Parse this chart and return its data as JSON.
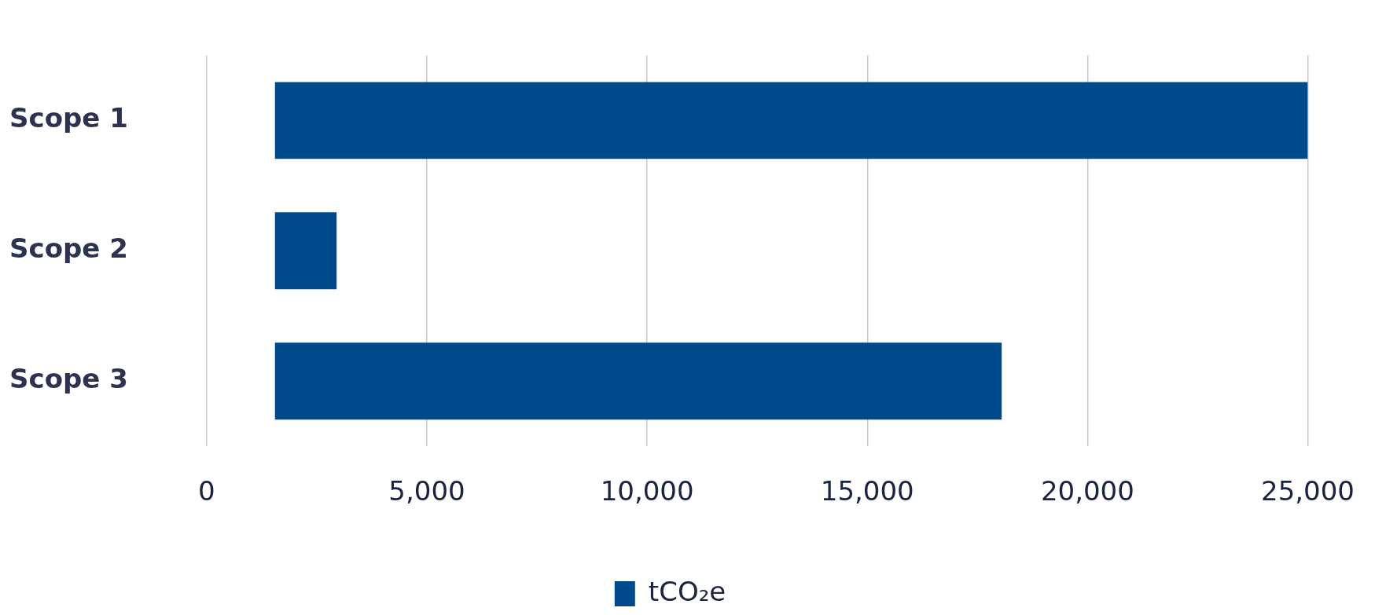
{
  "chart_data": {
    "type": "bar",
    "orientation": "horizontal",
    "categories": [
      "Scope 1",
      "Scope 2",
      "Scope 3"
    ],
    "series": [
      {
        "name": "tCO₂e",
        "color": "#004a8c",
        "values": [
          23450,
          1400,
          16500
        ],
        "base": [
          1550,
          1550,
          1550
        ]
      }
    ],
    "xlim": [
      0,
      25000
    ],
    "xticks": [
      {
        "value": 0,
        "label": "0"
      },
      {
        "value": 5000,
        "label": "5,000"
      },
      {
        "value": 10000,
        "label": "10,000"
      },
      {
        "value": 15000,
        "label": "15,000"
      },
      {
        "value": 20000,
        "label": "20,000"
      },
      {
        "value": 25000,
        "label": "25,000"
      }
    ],
    "grid": "x",
    "legend": "bottom"
  }
}
